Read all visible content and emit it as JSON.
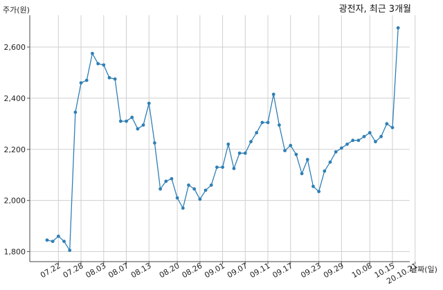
{
  "chart_data": {
    "type": "line",
    "title": "광전자, 최근 3개월",
    "ylabel": "주가(원)",
    "xlabel": "날짜(일)",
    "ylim": [
      1760,
      2720
    ],
    "yticks": [
      1800,
      2000,
      2200,
      2400,
      2600
    ],
    "ytick_labels": [
      "1,800",
      "2,000",
      "2,200",
      "2,400",
      "2,600"
    ],
    "grid": true,
    "xtick_labels": [
      "07.22",
      "07.28",
      "08.03",
      "08.07",
      "08.13",
      "08.20",
      "08.26",
      "09.01",
      "09.07",
      "09.11",
      "09.17",
      "09.23",
      "09.29",
      "10.08",
      "10.15",
      "20.10.21"
    ],
    "xtick_index": [
      2,
      6,
      10,
      14,
      18,
      23,
      27,
      31,
      35,
      39,
      43,
      48,
      52,
      57,
      61,
      65
    ],
    "color": "#2f7fb5",
    "series": [
      {
        "values": [
          1845,
          1840,
          1860,
          1840,
          1805,
          2345,
          2460,
          2470,
          2575,
          2535,
          2530,
          2480,
          2475,
          2310,
          2310,
          2325,
          2280,
          2295,
          2380,
          2225,
          2045,
          2075,
          2085,
          2010,
          1970,
          2060,
          2045,
          2005,
          2040,
          2060,
          2130,
          2130,
          2220,
          2125,
          2185,
          2185,
          2230,
          2265,
          2305,
          2305,
          2415,
          2295,
          2195,
          2215,
          2180,
          2105,
          2160,
          2055,
          2035,
          2115,
          2150,
          2190,
          2205,
          2220,
          2235,
          2235,
          2250,
          2265,
          2230,
          2250,
          2300,
          2285,
          2675
        ]
      }
    ]
  }
}
